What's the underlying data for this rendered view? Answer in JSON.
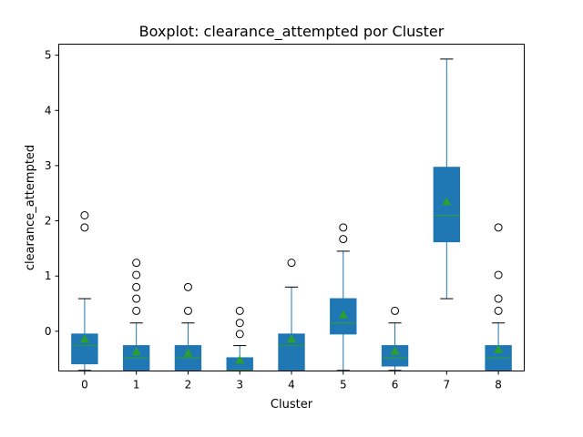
{
  "chart_data": {
    "type": "box",
    "title": "Boxplot: clearance_attempted por Cluster",
    "xlabel": "Cluster",
    "ylabel": "clearance_attempted",
    "ylim": [
      -0.72,
      5.2
    ],
    "yticks": [
      0,
      1,
      2,
      3,
      4,
      5
    ],
    "grid": false,
    "colors": {
      "box": "#1f77b4",
      "median": "#2ca02c",
      "mean": "#2ca02c",
      "cap": "#000000",
      "flier": "#000000"
    },
    "categories": [
      "0",
      "1",
      "2",
      "3",
      "4",
      "5",
      "6",
      "7",
      "8"
    ],
    "boxes": [
      {
        "category": "0",
        "whisker_low": -0.71,
        "q1": -0.59,
        "median": -0.26,
        "q3": -0.05,
        "whisker_high": 0.59,
        "mean": -0.14,
        "fliers": [
          1.88,
          2.1
        ]
      },
      {
        "category": "1",
        "whisker_low": -0.71,
        "q1": -0.71,
        "median": -0.48,
        "q3": -0.26,
        "whisker_high": 0.15,
        "mean": -0.37,
        "fliers": [
          0.37,
          0.59,
          0.8,
          1.02,
          1.24
        ]
      },
      {
        "category": "2",
        "whisker_low": -0.71,
        "q1": -0.71,
        "median": -0.48,
        "q3": -0.26,
        "whisker_high": 0.15,
        "mean": -0.39,
        "fliers": [
          0.37,
          0.8
        ]
      },
      {
        "category": "3",
        "whisker_low": -0.71,
        "q1": -0.71,
        "median": -0.71,
        "q3": -0.48,
        "whisker_high": -0.26,
        "mean": -0.52,
        "fliers": [
          -0.05,
          0.15,
          0.37
        ]
      },
      {
        "category": "4",
        "whisker_low": -0.71,
        "q1": -0.71,
        "median": -0.26,
        "q3": -0.05,
        "whisker_high": 0.8,
        "mean": -0.14,
        "fliers": [
          1.24
        ]
      },
      {
        "category": "5",
        "whisker_low": -0.71,
        "q1": -0.05,
        "median": 0.15,
        "q3": 0.59,
        "whisker_high": 1.45,
        "mean": 0.3,
        "fliers": [
          1.67,
          1.88
        ]
      },
      {
        "category": "6",
        "whisker_low": -0.71,
        "q1": -0.63,
        "median": -0.48,
        "q3": -0.26,
        "whisker_high": 0.15,
        "mean": -0.36,
        "fliers": [
          0.37
        ]
      },
      {
        "category": "7",
        "whisker_low": 0.59,
        "q1": 1.62,
        "median": 2.1,
        "q3": 2.97,
        "whisker_high": 4.93,
        "mean": 2.35,
        "fliers": []
      },
      {
        "category": "8",
        "whisker_low": -0.71,
        "q1": -0.71,
        "median": -0.48,
        "q3": -0.26,
        "whisker_high": 0.15,
        "mean": -0.33,
        "fliers": [
          0.37,
          0.59,
          1.02,
          1.88
        ]
      }
    ]
  }
}
